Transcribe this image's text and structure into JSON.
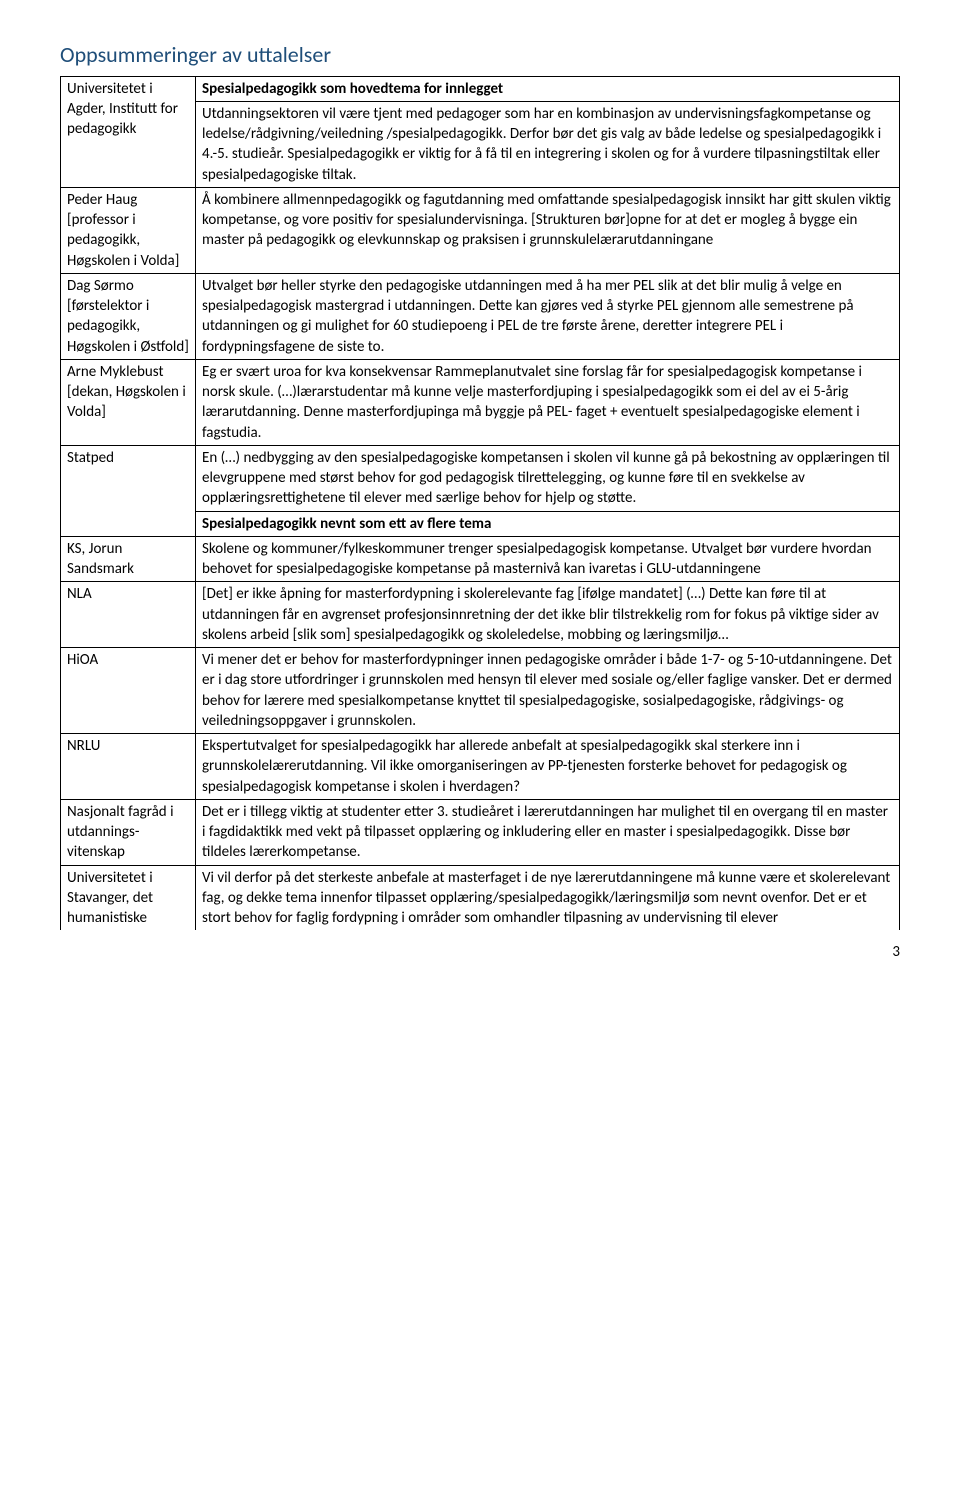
{
  "title": "Oppsummeringer av uttalelser",
  "header1": "Spesialpedagogikk som hovedtema for innlegget",
  "header2": "Spesialpedagogikk nevnt som ett av flere tema",
  "rows": [
    {
      "left": "Universitetet i Agder, Institutt for pedagogikk",
      "right": "Utdanningsektoren vil være tjent med pedagoger som har en kombinasjon av undervisningsfagkompetanse og ledelse/rådgivning/veiledning /spesialpedagogikk. Derfor bør det gis valg av både ledelse og spesialpedagogikk i 4.-5. studieår. Spesialpedagogikk er viktig for å få til en integrering i skolen og for å vurdere tilpasningstiltak eller spesialpedagogiske tiltak."
    },
    {
      "left": "Peder Haug [professor i pedagogikk, Høgskolen i Volda]",
      "right": "Å kombinere allmennpedagogikk og fagutdanning med omfattande spesialpedagogisk innsikt har gitt skulen viktig kompetanse, og vore positiv for spesialundervisninga. [Strukturen bør]opne for at det er mogleg å bygge ein master på pedagogikk og elevkunnskap og praksisen i grunnskulelærarutdanningane"
    },
    {
      "left": "Dag Sørmo [førstelektor i pedagogikk, Høgskolen i Østfold]",
      "right": "Utvalget bør heller styrke den pedagogiske utdanningen med å ha mer PEL slik at det blir mulig å velge en spesialpedagogisk mastergrad i utdanningen. Dette kan gjøres ved å styrke PEL gjennom alle semestrene på utdanningen og gi mulighet for 60 studiepoeng i PEL de tre første årene, deretter integrere PEL i fordypningsfagene de siste to."
    },
    {
      "left": "Arne Myklebust [dekan, Høgskolen i Volda]",
      "right": "Eg er svært uroa for kva konsekvensar Rammeplanutvalet sine forslag får for spesialpedagogisk kompetanse i norsk skule. (…)lærarstudentar må kunne velje masterfordjuping i spesialpedagogikk som ei del av ei 5-årig lærarutdanning. Denne masterfordjupinga må byggje på PEL- faget + eventuelt spesialpedagogiske element i fagstudia."
    },
    {
      "left": "Statped",
      "right": "En (…) nedbygging av den spesialpedagogiske kompetansen i skolen vil kunne gå på bekostning av opplæringen til elevgruppene med størst behov for god pedagogisk tilrettelegging, og kunne føre til en svekkelse av opplæringsrettighetene til elever med særlige behov for hjelp og støtte."
    },
    {
      "left": "KS, Jorun Sandsmark",
      "right": "Skolene og kommuner/fylkeskommuner trenger spesialpedagogisk kompetanse. Utvalget bør vurdere hvordan behovet for spesialpedagogiske kompetanse på masternivå kan ivaretas i GLU-utdanningene"
    },
    {
      "left": "NLA",
      "right": "[Det] er ikke åpning for masterfordypning i skolerelevante fag [ifølge mandatet] (…) Dette kan føre til at utdanningen får en avgrenset profesjonsinnretning der det ikke blir tilstrekkelig rom for fokus på viktige sider av skolens arbeid [slik som] spesialpedagogikk og skoleledelse, mobbing og læringsmiljø…"
    },
    {
      "left": "HiOA",
      "right": "Vi mener det er behov for masterfordypninger innen pedagogiske områder i både 1-7- og 5-10-utdanningene. Det er i dag store utfordringer i grunnskolen med hensyn til elever med sosiale og/eller faglige vansker. Det er dermed behov for lærere med spesialkompetanse knyttet til spesialpedagogiske, sosialpedagogiske, rådgivings- og veiledningsoppgaver i grunnskolen."
    },
    {
      "left": "NRLU",
      "right": "Ekspertutvalget for spesialpedagogikk har allerede anbefalt at spesialpedagogikk skal sterkere inn i grunnskolelærerutdanning. Vil ikke omorganiseringen av PP-tjenesten forsterke behovet for pedagogisk og spesialpedagogisk kompetanse i skolen i hverdagen?"
    },
    {
      "left": "Nasjonalt fagråd i utdannings-vitenskap",
      "right": "Det er i tillegg viktig at studenter etter 3. studieåret i lærerutdanningen har mulighet til en overgang til en master i fagdidaktikk med vekt på tilpasset opplæring og inkludering eller en master i spesialpedagogikk. Disse bør tildeles lærerkompetanse."
    },
    {
      "left": "Universitetet i Stavanger, det humanistiske",
      "right": "Vi vil derfor på det sterkeste anbefale at masterfaget i de nye lærerutdanningene må kunne være et skolerelevant fag, og dekke tema innenfor tilpasset opplæring/spesialpedagogikk/læringsmiljø som nevnt ovenfor. Det er et stort behov for faglig fordypning i områder som omhandler tilpasning av undervisning til elever"
    }
  ],
  "pageNumber": "3"
}
